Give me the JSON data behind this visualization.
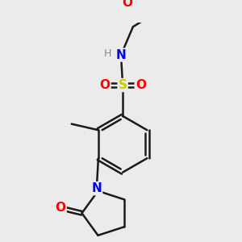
{
  "background_color": "#ebebeb",
  "bond_color": "#1a1a1a",
  "bond_width": 1.8,
  "atom_colors": {
    "O": "#ff0000",
    "N": "#0000ff",
    "S": "#cccc00",
    "H": "#888888",
    "C": "#1a1a1a"
  },
  "font_size_atom": 11,
  "font_size_H": 9
}
